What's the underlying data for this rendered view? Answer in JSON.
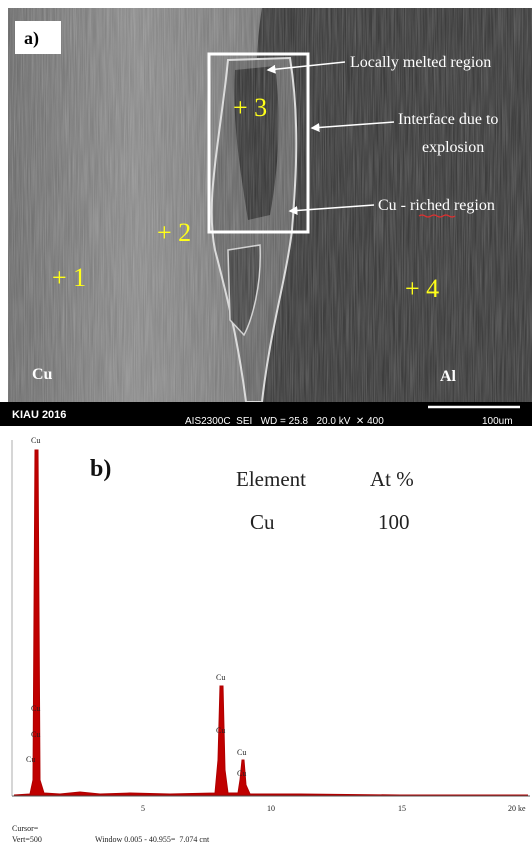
{
  "panel_a": {
    "label": "a)",
    "annotations": [
      "Locally melted region",
      "Interface due to",
      "explosion",
      "Cu - riched region"
    ],
    "points": [
      "+ 1",
      "+ 2",
      "+ 3",
      "+ 4"
    ],
    "materials": [
      "Cu",
      "Al"
    ],
    "info_bar": {
      "lab": "KIAU 2016",
      "settings": "AIS2300C  SEI   WD = 25.8   20.0 kV  ✕ 400",
      "scale": "100um"
    }
  },
  "panel_b": {
    "label": "b)",
    "table": {
      "header": [
        "Element",
        "At %"
      ],
      "rows": [
        [
          "Cu",
          "100"
        ]
      ]
    },
    "peak_labels": [
      "Cu",
      "Cu",
      "Cu",
      "Cu",
      "Cu",
      "Cu",
      "Cu",
      "Cu"
    ],
    "xticks": [
      "5",
      "10",
      "15",
      "20 ke"
    ],
    "cursor": [
      "Cursor=",
      "Vert=500",
      "Window 0.005 - 40.955=  7.074 cnt"
    ]
  }
}
